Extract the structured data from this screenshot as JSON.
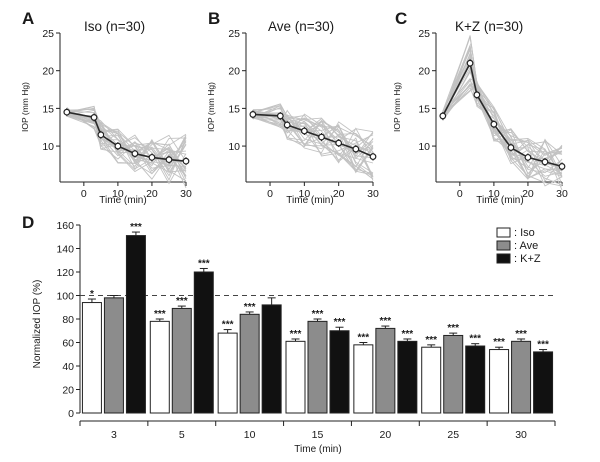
{
  "chart_data": [
    {
      "panel": "A",
      "type": "line",
      "title": "Iso (n=30)",
      "xlabel": "Time (min)",
      "ylabel": "IOP (mm Hg)",
      "x": [
        -5,
        3,
        5,
        10,
        15,
        20,
        25,
        30
      ],
      "xlim": [
        -7,
        30
      ],
      "ylim": [
        5.5,
        25
      ],
      "xticks": [
        0,
        10,
        20,
        30
      ],
      "yticks": [
        10,
        15,
        20,
        25
      ],
      "series": [
        {
          "values": [
            14.5,
            13.8,
            11.5,
            10.0,
            9.0,
            8.5,
            8.2,
            8.0
          ]
        }
      ],
      "mean_color": "#2a2a2a",
      "individual_color": "#c2c2c2"
    },
    {
      "panel": "B",
      "type": "line",
      "title": "Ave (n=30)",
      "xlabel": "Time (min)",
      "ylabel": "IOP (mm Hg)",
      "x": [
        -5,
        3,
        5,
        10,
        15,
        20,
        25,
        30
      ],
      "xlim": [
        -7,
        30
      ],
      "ylim": [
        5.5,
        25
      ],
      "xticks": [
        0,
        10,
        20,
        30
      ],
      "yticks": [
        10,
        15,
        20,
        25
      ],
      "series": [
        {
          "values": [
            14.2,
            14.0,
            12.8,
            12.0,
            11.2,
            10.4,
            9.6,
            8.6
          ]
        }
      ],
      "mean_color": "#2a2a2a",
      "individual_color": "#c2c2c2"
    },
    {
      "panel": "C",
      "type": "line",
      "title": "K+Z (n=30)",
      "xlabel": "Time (min)",
      "ylabel": "IOP (mm Hg)",
      "x": [
        -5,
        3,
        5,
        10,
        15,
        20,
        25,
        30
      ],
      "xlim": [
        -7,
        30
      ],
      "ylim": [
        5.5,
        25
      ],
      "xticks": [
        0,
        10,
        20,
        30
      ],
      "yticks": [
        10,
        15,
        20,
        25
      ],
      "series": [
        {
          "values": [
            14.0,
            21.0,
            16.8,
            12.9,
            9.8,
            8.5,
            7.9,
            7.3
          ]
        }
      ],
      "mean_color": "#2a2a2a",
      "individual_color": "#c2c2c2"
    },
    {
      "panel": "D",
      "type": "bar",
      "xlabel": "Time (min)",
      "ylabel": "Normalized IOP (%)",
      "categories": [
        "3",
        "5",
        "10",
        "15",
        "20",
        "25",
        "30"
      ],
      "ylim": [
        0,
        160
      ],
      "yticks": [
        0,
        20,
        40,
        60,
        80,
        100,
        120,
        140,
        160
      ],
      "reference_line": 100,
      "legend_position": "top-right",
      "series": [
        {
          "name": ": Iso",
          "color": "#ffffff",
          "values": [
            94,
            78,
            68,
            61,
            58,
            56,
            54
          ],
          "errors": [
            3,
            2,
            3,
            2,
            2,
            2,
            2
          ],
          "significance": [
            "*",
            "***",
            "***",
            "***",
            "***",
            "***",
            "***"
          ]
        },
        {
          "name": ": Ave",
          "color": "#8c8c8c",
          "values": [
            98,
            89,
            84,
            78,
            72,
            66,
            61
          ],
          "errors": [
            2,
            2,
            2,
            2,
            2,
            2,
            2
          ],
          "significance": [
            "",
            "***",
            "***",
            "***",
            "***",
            "***",
            "***"
          ]
        },
        {
          "name": ": K+Z",
          "color": "#111111",
          "values": [
            151,
            120,
            92,
            70,
            61,
            57,
            52
          ],
          "errors": [
            3,
            3,
            6,
            3,
            2,
            2,
            2
          ],
          "significance": [
            "***",
            "***",
            "",
            "***",
            "***",
            "***",
            "***"
          ]
        }
      ]
    }
  ]
}
